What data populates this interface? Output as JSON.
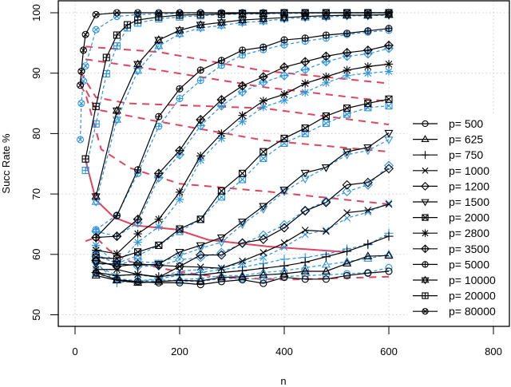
{
  "chart_data": {
    "type": "line",
    "title": "",
    "xlabel": "n",
    "ylabel": "Succ Rate %",
    "xlim": [
      -30,
      830
    ],
    "ylim": [
      48,
      102
    ],
    "xticks": [
      0,
      200,
      400,
      600,
      800
    ],
    "yticks": [
      50,
      60,
      70,
      80,
      90,
      100
    ],
    "grid": true,
    "legend_position": "right",
    "colors": {
      "primary": "#000000",
      "secondary": "#2A93E0",
      "contour": "#E0455F"
    },
    "x_default": [
      40,
      80,
      120,
      160,
      200,
      240,
      280,
      320,
      360,
      400,
      440,
      480,
      520,
      560,
      600
    ],
    "series": [
      {
        "name": "p= 500",
        "marker": "circle",
        "values": [
          57,
          55.8,
          55.5,
          55.3,
          55.3,
          55,
          55.5,
          55.8,
          55.2,
          56.2,
          55.9,
          55.9,
          56.5,
          56.9,
          57.2
        ],
        "alt_values": [
          56.8,
          56,
          55.6,
          55.8,
          55.6,
          55.5,
          56,
          56,
          55.9,
          56.3,
          56.5,
          56.6,
          56.8,
          57,
          57.8
        ]
      },
      {
        "name": "p= 625",
        "marker": "triangle-up",
        "values": [
          56.5,
          55.7,
          55.3,
          55.5,
          55.7,
          55.6,
          56.2,
          56.3,
          56.6,
          56.8,
          57.2,
          57.2,
          58.5,
          59.7,
          59.8
        ],
        "alt_values": [
          56.8,
          55.9,
          55.6,
          55.5,
          55.8,
          56,
          56.5,
          56.5,
          57,
          57.3,
          57.8,
          58.3,
          58.8,
          59.3,
          60
        ]
      },
      {
        "name": "p= 750",
        "marker": "plus",
        "values": [
          57,
          56.5,
          56.7,
          56.3,
          56.7,
          56.6,
          57,
          57.3,
          57.7,
          58.1,
          58.7,
          59.6,
          60.5,
          61.7,
          63
        ],
        "alt_values": [
          58.7,
          55.3,
          55.6,
          56,
          56.5,
          57,
          57.5,
          57.9,
          58.5,
          59.2,
          59.5,
          60,
          60.9,
          61.6,
          63.5
        ]
      },
      {
        "name": "p= 1000",
        "marker": "x",
        "values": [
          57.5,
          57.5,
          56.7,
          56.2,
          58,
          57.9,
          57.7,
          58.9,
          60.3,
          61.9,
          64,
          63.8,
          66.9,
          67.3,
          68.3
        ],
        "alt_values": [
          58.1,
          56.5,
          56.6,
          56.2,
          57.2,
          57.5,
          57.8,
          58.5,
          59.5,
          61.2,
          63.3,
          64,
          66,
          67,
          68.5
        ]
      },
      {
        "name": "p= 1200",
        "marker": "diamond",
        "values": [
          59,
          58,
          58.4,
          58.2,
          58,
          59.9,
          59.9,
          61.9,
          62.5,
          64.4,
          67.2,
          68.6,
          71.5,
          71.9,
          74.2
        ],
        "alt_values": [
          59.7,
          58.6,
          58,
          58.1,
          59.1,
          59.5,
          60.3,
          61.8,
          63.2,
          64.9,
          67.3,
          68.8,
          70.4,
          71.5,
          74.7
        ]
      },
      {
        "name": "p= 1500",
        "marker": "triangle-down",
        "values": [
          58.5,
          58.4,
          58.2,
          58.4,
          60.4,
          61.5,
          62.8,
          65.4,
          68,
          70.7,
          73.5,
          74.4,
          77,
          77.7,
          80.1
        ],
        "alt_values": [
          58.3,
          58.5,
          58.8,
          58.6,
          59.8,
          61,
          62,
          65,
          67.5,
          70.4,
          72.5,
          74.4,
          76.5,
          77.2,
          79
        ]
      },
      {
        "name": "p= 2000",
        "marker": "square-x",
        "values": [
          59.5,
          59.3,
          60.4,
          61.5,
          64.2,
          65.8,
          70.5,
          73.4,
          77,
          79.2,
          80.9,
          82.9,
          84.2,
          85,
          85.7
        ],
        "alt_values": [
          60,
          58.5,
          59.8,
          61.5,
          63.8,
          65.8,
          69.5,
          72.4,
          75.9,
          78.4,
          80,
          81.7,
          83.2,
          84.3,
          84.6
        ]
      },
      {
        "name": "p= 2800",
        "marker": "asterisk",
        "values": [
          60.7,
          60.1,
          63.4,
          65.8,
          70.3,
          76.3,
          80,
          83,
          85.4,
          86.5,
          88.3,
          89.4,
          90.5,
          91.1,
          91.5
        ],
        "alt_values": [
          61.5,
          58.3,
          62,
          64.6,
          69.1,
          75.6,
          79.2,
          82,
          84.4,
          85.5,
          86.8,
          88.4,
          89.6,
          90,
          90.3
        ]
      },
      {
        "name": "p= 3500",
        "marker": "diamond-plus",
        "values": [
          62.8,
          63,
          65.8,
          73.4,
          77.2,
          82.3,
          85.6,
          87.9,
          89.4,
          91,
          91.9,
          92.8,
          93.4,
          93.8,
          94.6
        ],
        "alt_values": [
          63.8,
          63,
          65.2,
          72.7,
          76.5,
          81.3,
          84.6,
          86.9,
          88.5,
          89.6,
          90.6,
          91.9,
          92.8,
          93.2,
          94.1
        ]
      },
      {
        "name": "p= 5000",
        "marker": "circle-plus",
        "values": [
          62.8,
          66.4,
          74,
          82.8,
          87.4,
          90.5,
          92.1,
          93.8,
          94.3,
          95.5,
          95.8,
          96.3,
          96.6,
          97,
          97.4
        ],
        "alt_values": [
          64.1,
          66.5,
          73.4,
          81.2,
          85.8,
          88.8,
          91.3,
          93,
          93.9,
          94.7,
          95.3,
          95.8,
          96.4,
          96.8,
          97.1
        ]
      },
      {
        "name": "p= 10000",
        "marker": "star-of-david",
        "values": [
          69.6,
          83.8,
          91.5,
          95.5,
          97.1,
          98,
          98.4,
          98.8,
          99,
          99.2,
          99.4,
          99.5,
          99.6,
          99.6,
          99.7
        ],
        "alt_values": [
          68.7,
          82.3,
          90.4,
          94.5,
          96.5,
          97.5,
          97.9,
          98.4,
          98.6,
          99,
          99.2,
          99.3,
          99.5,
          99.5,
          99.6
        ]
      },
      {
        "name": "p= 20000",
        "marker": "square-plus",
        "x": [
          20,
          40,
          60,
          80,
          100,
          120,
          160,
          200,
          240,
          280,
          320,
          360,
          400,
          440,
          480,
          520,
          560,
          600
        ],
        "values": [
          75.8,
          84.5,
          92.6,
          96.3,
          98,
          98.8,
          99.3,
          99.6,
          99.7,
          99.8,
          99.9,
          99.9,
          100,
          100,
          100,
          100,
          100,
          100
        ],
        "alt_values": [
          73.9,
          81.6,
          89.9,
          94.5,
          97.5,
          98.3,
          99,
          99.3,
          99.5,
          99.7,
          99.8,
          99.8,
          99.9,
          99.9,
          100,
          100,
          100,
          100
        ]
      },
      {
        "name": "p= 80000",
        "marker": "circle-x",
        "x": [
          10,
          12,
          16,
          20,
          40,
          80,
          120,
          160,
          200,
          240,
          280,
          320,
          360,
          400,
          440,
          480,
          520,
          560,
          600
        ],
        "values": [
          88,
          90.3,
          93.8,
          96.4,
          99.7,
          100,
          100,
          100,
          100,
          100,
          100,
          100,
          100,
          100,
          100,
          100,
          100,
          100,
          100
        ],
        "alt_values": [
          79,
          85,
          88.7,
          91.2,
          97.2,
          99.4,
          99.7,
          99.8,
          99.9,
          100,
          100,
          100,
          100,
          100,
          100,
          100,
          100,
          100,
          100
        ]
      }
    ],
    "contours_dashed": [
      [
        [
          20,
          94.4
        ],
        [
          160,
          93.5
        ],
        [
          360,
          90.4
        ],
        [
          600,
          88.3
        ]
      ],
      [
        [
          20,
          92.3
        ],
        [
          160,
          90.5
        ],
        [
          360,
          87.7
        ],
        [
          600,
          85.3
        ]
      ],
      [
        [
          10,
          90.2
        ],
        [
          40,
          86
        ],
        [
          100,
          85
        ],
        [
          360,
          84.2
        ],
        [
          600,
          81.5
        ]
      ],
      [
        [
          10,
          89
        ],
        [
          40,
          84
        ],
        [
          140,
          82.3
        ],
        [
          360,
          78.9
        ],
        [
          600,
          77
        ]
      ],
      [
        [
          10,
          88
        ],
        [
          20,
          86.6
        ],
        [
          50,
          77.4
        ],
        [
          105,
          74.3
        ],
        [
          200,
          71.7
        ],
        [
          380,
          70.3
        ],
        [
          600,
          68.3
        ]
      ],
      [
        [
          20,
          62.2
        ],
        [
          40,
          62.8
        ],
        [
          65,
          60.7
        ],
        [
          105,
          58.8
        ],
        [
          200,
          57.1
        ],
        [
          280,
          56.2
        ],
        [
          400,
          55.8
        ],
        [
          600,
          56.3
        ]
      ]
    ],
    "contour_solid": [
      [
        20,
        75.6
      ],
      [
        40,
        69
      ],
      [
        75,
        66.1
      ],
      [
        115,
        64.8
      ],
      [
        195,
        64.1
      ],
      [
        255,
        62.4
      ],
      [
        370,
        61.3
      ],
      [
        515,
        60.4
      ]
    ]
  }
}
